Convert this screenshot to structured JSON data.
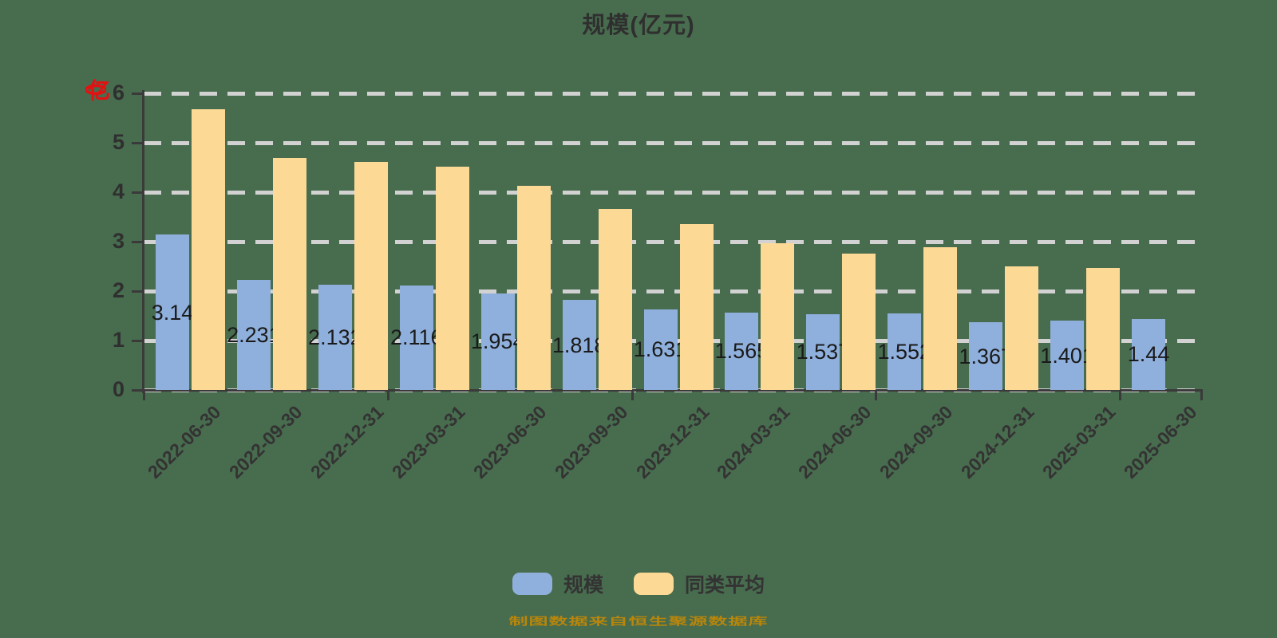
{
  "title": "规模(亿元)",
  "y_axis": {
    "name": "(亿)",
    "ticks": [
      "0",
      "1",
      "2",
      "3",
      "4",
      "5",
      "6"
    ]
  },
  "chart_data": {
    "type": "bar",
    "title": "规模(亿元)",
    "categories": [
      "2022-06-30",
      "2022-09-30",
      "2022-12-31",
      "2023-03-31",
      "2023-06-30",
      "2023-09-30",
      "2023-12-31",
      "2024-03-31",
      "2024-06-30",
      "2024-09-30",
      "2024-12-31",
      "2025-03-31",
      "2025-06-30"
    ],
    "series": [
      {
        "name": "规模",
        "color": "#8FB0DC",
        "values": [
          3.14,
          2.231,
          2.132,
          2.116,
          1.954,
          1.818,
          1.631,
          1.565,
          1.537,
          1.552,
          1.367,
          1.401,
          1.44
        ],
        "labels": [
          "3.14",
          "2.231",
          "2.132",
          "2.116",
          "1.954",
          "1.818",
          "1.631",
          "1.565",
          "1.537",
          "1.552",
          "1.367",
          "1.401",
          "1.44"
        ]
      },
      {
        "name": "同类平均",
        "color": "#FDD996",
        "values": [
          5.68,
          4.7,
          4.62,
          4.52,
          4.13,
          3.66,
          3.35,
          2.97,
          2.76,
          2.89,
          2.5,
          2.47,
          null
        ]
      }
    ],
    "ylim": [
      0,
      6
    ],
    "y_ticks": [
      0,
      1,
      2,
      3,
      4,
      5,
      6
    ],
    "grid": "horizontal dashed",
    "legend_position": "bottom",
    "x_label_rotation": 45
  },
  "legend": {
    "items": [
      {
        "label": "规模",
        "color": "#8FB0DC"
      },
      {
        "label": "同类平均",
        "color": "#FDD996"
      }
    ]
  },
  "footnote": "制图数据来自恒生聚源数据库",
  "colors": {
    "background": "#486C4E",
    "bar_scale": "#8FB0DC",
    "bar_peer_average": "#FDD996",
    "gridline": "#D2D2D2",
    "axis": "#3A3A3A",
    "title": "#2F2F2F",
    "value_label": "#1A1A1A",
    "y_axis_name": "#E31212",
    "footnote": "#B8860B"
  }
}
